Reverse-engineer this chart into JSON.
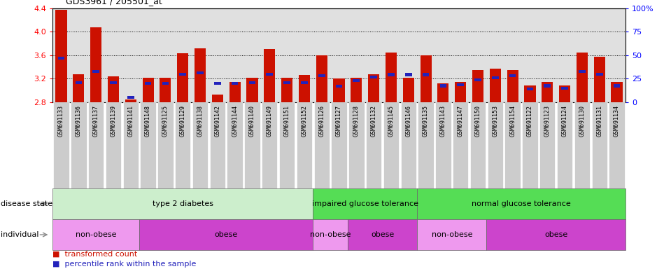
{
  "title": "GDS3961 / 205501_at",
  "samples": [
    "GSM691133",
    "GSM691136",
    "GSM691137",
    "GSM691139",
    "GSM691141",
    "GSM691148",
    "GSM691125",
    "GSM691129",
    "GSM691138",
    "GSM691142",
    "GSM691144",
    "GSM691140",
    "GSM691149",
    "GSM691151",
    "GSM691152",
    "GSM691126",
    "GSM691127",
    "GSM691128",
    "GSM691132",
    "GSM691145",
    "GSM691146",
    "GSM691135",
    "GSM691143",
    "GSM691147",
    "GSM691150",
    "GSM691153",
    "GSM691154",
    "GSM691122",
    "GSM691123",
    "GSM691124",
    "GSM691130",
    "GSM691131",
    "GSM691134"
  ],
  "red_values": [
    4.37,
    3.27,
    4.07,
    3.24,
    2.85,
    3.21,
    3.21,
    3.63,
    3.72,
    2.93,
    3.14,
    3.21,
    3.7,
    3.21,
    3.26,
    3.6,
    3.2,
    3.22,
    3.27,
    3.65,
    3.21,
    3.6,
    3.12,
    3.15,
    3.35,
    3.37,
    3.35,
    3.08,
    3.15,
    3.09,
    3.65,
    3.57,
    3.15
  ],
  "blue_values": [
    3.55,
    3.13,
    3.32,
    3.13,
    2.88,
    3.12,
    3.12,
    3.28,
    3.3,
    3.12,
    3.12,
    3.13,
    3.28,
    3.13,
    3.13,
    3.25,
    3.07,
    3.17,
    3.23,
    3.27,
    3.27,
    3.27,
    3.08,
    3.1,
    3.18,
    3.22,
    3.25,
    3.03,
    3.08,
    3.04,
    3.32,
    3.28,
    3.08
  ],
  "ymin": 2.8,
  "ymax": 4.4,
  "yticks_left": [
    2.8,
    3.2,
    3.6,
    4.0,
    4.4
  ],
  "yticks_right": [
    0,
    25,
    50,
    75,
    100
  ],
  "bar_color": "#cc1100",
  "blue_color": "#2222bb",
  "plot_bg": "#e0e0e0",
  "xtick_bg": "#cccccc",
  "disease_groups": [
    {
      "label": "type 2 diabetes",
      "start": 0,
      "end": 15,
      "color": "#cceecc"
    },
    {
      "label": "impaired glucose tolerance",
      "start": 15,
      "end": 21,
      "color": "#55dd55"
    },
    {
      "label": "normal glucose tolerance",
      "start": 21,
      "end": 33,
      "color": "#55dd55"
    }
  ],
  "individual_groups": [
    {
      "label": "non-obese",
      "start": 0,
      "end": 5,
      "color": "#ee99ee"
    },
    {
      "label": "obese",
      "start": 5,
      "end": 15,
      "color": "#cc44cc"
    },
    {
      "label": "non-obese",
      "start": 15,
      "end": 17,
      "color": "#ee99ee"
    },
    {
      "label": "obese",
      "start": 17,
      "end": 21,
      "color": "#cc44cc"
    },
    {
      "label": "non-obese",
      "start": 21,
      "end": 25,
      "color": "#ee99ee"
    },
    {
      "label": "obese",
      "start": 25,
      "end": 33,
      "color": "#cc44cc"
    }
  ]
}
